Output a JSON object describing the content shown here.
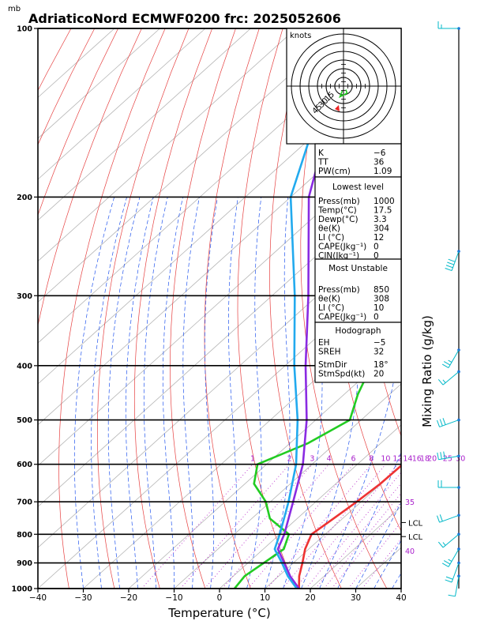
{
  "chart_data": {
    "type": "line",
    "title": "AdriaticoNord ECMWF0200 frc: 2025052606",
    "xlabel": "Temperature (°C)",
    "ylabel": "Mixing Ratio (g/kg)",
    "pressure_unit": "mb",
    "x_ticks": [
      "−40",
      "−30",
      "−20",
      "−10",
      "0",
      "10",
      "20",
      "30",
      "40"
    ],
    "xlim": [
      -40,
      40
    ],
    "ylim_mb": [
      1000,
      100
    ],
    "isobars": [
      {
        "p": 100,
        "label": "100"
      },
      {
        "p": 200,
        "label": "200"
      },
      {
        "p": 300,
        "label": "300"
      },
      {
        "p": 400,
        "label": "400"
      },
      {
        "p": 500,
        "label": "500"
      },
      {
        "p": 600,
        "label": "600"
      },
      {
        "p": 700,
        "label": "700"
      },
      {
        "p": 800,
        "label": "800"
      },
      {
        "p": 900,
        "label": "900"
      },
      {
        "p": 1000,
        "label": "1000"
      }
    ],
    "mixing_ratio_labels": [
      "1",
      "2",
      "3",
      "4",
      "6",
      "8",
      "10",
      "12",
      "14",
      "16",
      "18",
      "20",
      "25",
      "30"
    ],
    "theta_labels": [
      "35",
      "40"
    ],
    "lcl_labels": [
      "LCL",
      "LCL"
    ],
    "series": [
      {
        "name": "Temperature",
        "color": "#ee3333",
        "points": [
          [
            1000,
            17.5
          ],
          [
            950,
            14.5
          ],
          [
            900,
            12.0
          ],
          [
            850,
            9.2
          ],
          [
            800,
            7.0
          ],
          [
            750,
            8.0
          ],
          [
            700,
            9.0
          ],
          [
            650,
            9.8
          ],
          [
            600,
            10.0
          ],
          [
            550,
            9.0
          ],
          [
            500,
            6.5
          ],
          [
            450,
            3.0
          ],
          [
            400,
            -1.5
          ],
          [
            350,
            -7.0
          ],
          [
            300,
            -13.0
          ],
          [
            250,
            -19.0
          ],
          [
            230,
            -20.5
          ],
          [
            200,
            -19.0
          ],
          [
            150,
            -19.5
          ],
          [
            100,
            -18.0
          ]
        ]
      },
      {
        "name": "Dewpoint",
        "color": "#22cc22",
        "points": [
          [
            1000,
            3.3
          ],
          [
            950,
            2.5
          ],
          [
            900,
            3.5
          ],
          [
            850,
            4.5
          ],
          [
            800,
            2.0
          ],
          [
            750,
            -6.0
          ],
          [
            700,
            -11.0
          ],
          [
            650,
            -18.0
          ],
          [
            600,
            -22.0
          ],
          [
            550,
            -16.0
          ],
          [
            500,
            -12.5
          ],
          [
            450,
            -17.0
          ],
          [
            400,
            -21.0
          ],
          [
            350,
            -30.0
          ],
          [
            300,
            -40.0
          ],
          [
            260,
            -48.0
          ],
          [
            250,
            -49.5
          ],
          [
            200,
            -61.0
          ],
          [
            150,
            -72.0
          ],
          [
            100,
            -82.0
          ]
        ]
      },
      {
        "name": "Parcel",
        "color": "#8a2be2",
        "points": [
          [
            1000,
            17.5
          ],
          [
            950,
            12.5
          ],
          [
            900,
            8.0
          ],
          [
            850,
            3.2
          ],
          [
            800,
            1.0
          ],
          [
            700,
            -5.0
          ],
          [
            600,
            -12.0
          ],
          [
            500,
            -22.0
          ],
          [
            400,
            -35.5
          ],
          [
            300,
            -52.0
          ],
          [
            200,
            -76.0
          ],
          [
            150,
            -89.0
          ]
        ]
      },
      {
        "name": "Parcel virtual",
        "color": "#22aaee",
        "points": [
          [
            1000,
            17.0
          ],
          [
            950,
            12.0
          ],
          [
            900,
            7.5
          ],
          [
            850,
            2.5
          ],
          [
            800,
            0.0
          ],
          [
            700,
            -6.0
          ],
          [
            600,
            -13.5
          ],
          [
            500,
            -24.0
          ],
          [
            400,
            -38.0
          ],
          [
            300,
            -55.0
          ],
          [
            200,
            -80.0
          ],
          [
            140,
            -95.0
          ]
        ]
      }
    ],
    "hodograph": {
      "unit_label": "knots",
      "ring_labels": [
        "15",
        "30",
        "45"
      ],
      "points": [
        [
          2,
          -3
        ],
        [
          3,
          -6
        ],
        [
          -1,
          -8
        ],
        [
          -3,
          -9
        ],
        [
          -1,
          -4
        ]
      ]
    },
    "winds": [
      {
        "p": 100,
        "dir": 270,
        "spd": 15
      },
      {
        "p": 250,
        "dir": 200,
        "spd": 40
      },
      {
        "p": 375,
        "dir": 210,
        "spd": 25
      },
      {
        "p": 410,
        "dir": 230,
        "spd": 15
      },
      {
        "p": 500,
        "dir": 250,
        "spd": 30
      },
      {
        "p": 580,
        "dir": 260,
        "spd": 30
      },
      {
        "p": 660,
        "dir": 270,
        "spd": 20
      },
      {
        "p": 740,
        "dir": 250,
        "spd": 20
      },
      {
        "p": 800,
        "dir": 230,
        "spd": 15
      },
      {
        "p": 850,
        "dir": 210,
        "spd": 25
      },
      {
        "p": 900,
        "dir": 200,
        "spd": 20
      },
      {
        "p": 950,
        "dir": 190,
        "spd": 10
      }
    ],
    "indices": {
      "top": [
        [
          "K",
          "−6"
        ],
        [
          "TT",
          "36"
        ],
        [
          "PW(cm)",
          "1.09"
        ]
      ],
      "lowest_title": "Lowest level",
      "lowest": [
        [
          "Press(mb)",
          "1000"
        ],
        [
          "Temp(°C)",
          "17.5"
        ],
        [
          "Dewp(°C)",
          "3.3"
        ],
        [
          "θe(K)",
          "304"
        ],
        [
          "LI (°C)",
          "12"
        ],
        [
          "CAPE(Jkg⁻¹)",
          "0"
        ],
        [
          "CIN(Jkg⁻¹)",
          "0"
        ]
      ],
      "mu_title": "Most Unstable",
      "mu": [
        [
          "Press(mb)",
          "850"
        ],
        [
          "θe(K)",
          "308"
        ],
        [
          "LI (°C)",
          "10"
        ],
        [
          "CAPE(Jkg⁻¹)",
          "0"
        ],
        [
          "CIN(Jkg⁻¹)",
          "0"
        ]
      ],
      "hodo_title": "Hodograph",
      "hodo": [
        [
          "EH",
          "−5"
        ],
        [
          "SREH",
          "32"
        ]
      ],
      "storm": [
        [
          "StmDir",
          "18°"
        ],
        [
          "StmSpd(kt)",
          "20"
        ]
      ]
    }
  }
}
